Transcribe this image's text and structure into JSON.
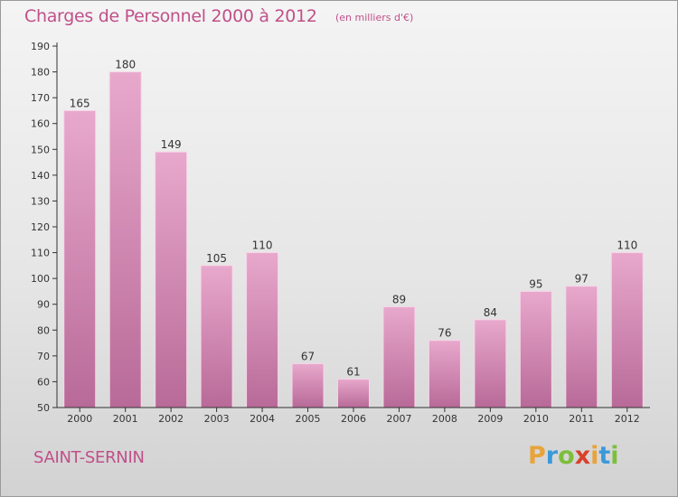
{
  "header": {
    "title": "Charges de Personnel 2000 à 2012",
    "subtitle": "(en milliers d'€)"
  },
  "footer": {
    "commune": "SAINT-SERNIN",
    "logo_letters": [
      "P",
      "r",
      "o",
      "x",
      "i",
      "t",
      "i"
    ],
    "logo_colors": [
      "#e8a33a",
      "#3a9ad9",
      "#7cbf3a",
      "#d9402a",
      "#e8a33a",
      "#3a9ad9",
      "#7cbf3a"
    ]
  },
  "colors": {
    "bar_top": "#e8a8cc",
    "bar_bottom": "#b86a98",
    "bar_edge": "#f6d6e8",
    "text": "#c0508a",
    "axis": "#333333"
  },
  "chart_data": {
    "type": "bar",
    "categories": [
      "2000",
      "2001",
      "2002",
      "2003",
      "2004",
      "2005",
      "2006",
      "2007",
      "2008",
      "2009",
      "2010",
      "2011",
      "2012"
    ],
    "values": [
      165,
      180,
      149,
      105,
      110,
      67,
      61,
      89,
      76,
      84,
      95,
      97,
      110
    ],
    "ylim": [
      50,
      190
    ],
    "yticks": [
      50,
      60,
      70,
      80,
      90,
      100,
      110,
      120,
      130,
      140,
      150,
      160,
      170,
      180,
      190
    ],
    "grid": false,
    "data_labels": true
  }
}
